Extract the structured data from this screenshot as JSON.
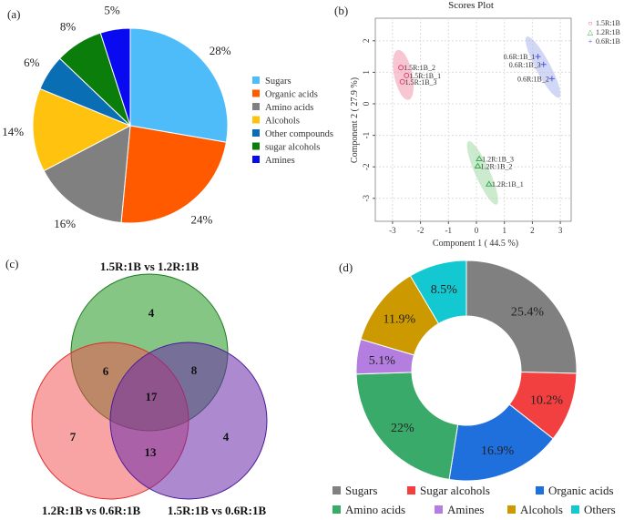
{
  "chart_data": [
    {
      "panel": "(a)",
      "type": "pie",
      "categories": [
        "Sugars",
        "Organic acids",
        "Amino acids",
        "Alcohols",
        "Other compounds",
        "sugar alcohols",
        "Amines"
      ],
      "values": [
        28,
        24,
        16,
        14,
        6,
        8,
        5
      ],
      "labels": [
        "28%",
        "24%",
        "16%",
        "14%",
        "6%",
        "8%",
        "5%"
      ],
      "colors": [
        "#4fbcfa",
        "#ff5a00",
        "#808080",
        "#ffc20e",
        "#0a6eb4",
        "#0a7d0a",
        "#0a0af0"
      ],
      "legend": "right"
    },
    {
      "panel": "(b)",
      "type": "scatter",
      "title": "Scores Plot",
      "xlabel": "Component 1 ( 44.5 %)",
      "ylabel": "Component 2 ( 27.9 %)",
      "xlim": [
        -3.5,
        3.5
      ],
      "ylim": [
        -3.8,
        2.8
      ],
      "xticks": [
        -3,
        -2,
        -1,
        0,
        1,
        2,
        3
      ],
      "yticks": [
        -3,
        -2,
        -1,
        0,
        1,
        2
      ],
      "grid": true,
      "legend": "top-right",
      "series": [
        {
          "name": "1.5R:1B",
          "marker": "○",
          "color": "#e0406a",
          "ellipse_color": "#f2a0b4",
          "points": [
            {
              "label": "1.5R:1B_2",
              "x": -2.7,
              "y": 1.15
            },
            {
              "label": "1.5R:1B_1",
              "x": -2.5,
              "y": 0.9
            },
            {
              "label": "1.5R:1B_3",
              "x": -2.65,
              "y": 0.7
            }
          ]
        },
        {
          "name": "1.2R:1B",
          "marker": "△",
          "color": "#3aaa50",
          "ellipse_color": "#a8dcae",
          "points": [
            {
              "label": "1.2R:1B_3",
              "x": 0.1,
              "y": -1.75
            },
            {
              "label": "1.2R:1B_2",
              "x": 0.05,
              "y": -1.98
            },
            {
              "label": "1.2R:1B_1",
              "x": 0.45,
              "y": -2.55
            }
          ]
        },
        {
          "name": "0.6R:1B",
          "marker": "+",
          "color": "#4a5adc",
          "ellipse_color": "#b4bcf0",
          "points": [
            {
              "label": "0.6R:1B_1",
              "x": 2.2,
              "y": 1.5
            },
            {
              "label": "0.6R:1B_3",
              "x": 2.4,
              "y": 1.25
            },
            {
              "label": "0.6R:1B_2",
              "x": 2.7,
              "y": 0.8
            }
          ]
        }
      ]
    },
    {
      "panel": "(c)",
      "type": "venn",
      "sets": [
        "1.5R:1B vs 1.2R:1B",
        "1.2R:1B vs 0.6R:1B",
        "1.5R:1B vs 0.6R:1B"
      ],
      "colors": [
        "#3aa33a",
        "#f44a4a",
        "#7a3ab4"
      ],
      "regions": {
        "only_top": "4",
        "top_left": "6",
        "top_right": "8",
        "all": "17",
        "only_left": "7",
        "left_right": "13",
        "only_right": "4"
      }
    },
    {
      "panel": "(d)",
      "type": "pie",
      "donut": true,
      "categories": [
        "Sugars",
        "Sugar alcohols",
        "Organic acids",
        "Amino acids",
        "Amines",
        "Alcohols",
        "Others"
      ],
      "values": [
        25.4,
        10.2,
        16.9,
        22,
        5.1,
        11.9,
        8.5
      ],
      "labels": [
        "25.4%",
        "10.2%",
        "16.9%",
        "22%",
        "5.1%",
        "11.9%",
        "8.5%"
      ],
      "colors": [
        "#808080",
        "#f24040",
        "#1f6fdc",
        "#3aaa6a",
        "#b47ee0",
        "#cc9900",
        "#14c8d2"
      ],
      "legend": "bottom"
    }
  ]
}
